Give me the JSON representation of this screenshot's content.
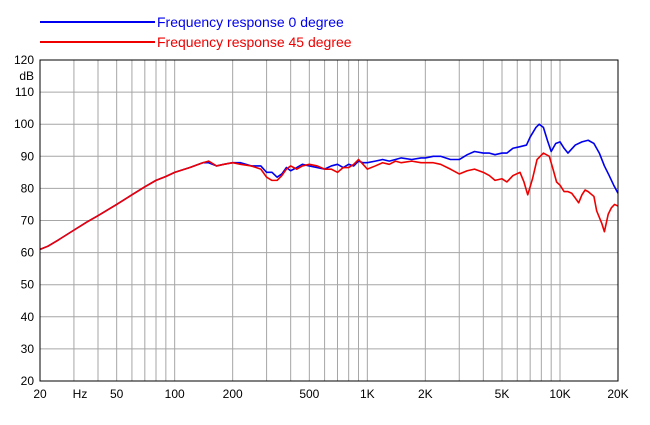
{
  "chart_data": {
    "type": "line",
    "title": "",
    "xlabel": "",
    "ylabel": "",
    "x_scale": "log",
    "xlim": [
      20,
      20000
    ],
    "ylim": [
      20,
      120
    ],
    "x_unit_label": "Hz",
    "y_unit_label": "dB",
    "grid": true,
    "legend_position": "top-left",
    "x_tick_labels": [
      {
        "value": 20,
        "label": "20"
      },
      {
        "value": 50,
        "label": "50"
      },
      {
        "value": 100,
        "label": "100"
      },
      {
        "value": 200,
        "label": "200"
      },
      {
        "value": 500,
        "label": "500"
      },
      {
        "value": 1000,
        "label": "1K"
      },
      {
        "value": 2000,
        "label": "2K"
      },
      {
        "value": 5000,
        "label": "5K"
      },
      {
        "value": 10000,
        "label": "10K"
      },
      {
        "value": 20000,
        "label": "20K"
      }
    ],
    "x_minor_grid": [
      30,
      40,
      60,
      70,
      80,
      90,
      300,
      400,
      600,
      700,
      800,
      900,
      3000,
      4000,
      6000,
      7000,
      8000,
      9000
    ],
    "y_ticks": [
      20,
      30,
      40,
      50,
      60,
      70,
      80,
      90,
      100,
      110,
      120
    ],
    "series": [
      {
        "name": "Frequency response 0 degree",
        "color": "#0000ee",
        "points": [
          [
            20,
            61
          ],
          [
            22,
            62
          ],
          [
            25,
            64
          ],
          [
            30,
            67
          ],
          [
            35,
            69.5
          ],
          [
            40,
            71.5
          ],
          [
            50,
            75
          ],
          [
            60,
            78
          ],
          [
            70,
            80.5
          ],
          [
            80,
            82.5
          ],
          [
            90,
            83.7
          ],
          [
            100,
            85
          ],
          [
            120,
            86.5
          ],
          [
            140,
            88
          ],
          [
            150,
            88
          ],
          [
            165,
            87
          ],
          [
            180,
            87.5
          ],
          [
            200,
            88
          ],
          [
            220,
            88
          ],
          [
            250,
            87
          ],
          [
            280,
            87
          ],
          [
            300,
            85
          ],
          [
            320,
            85
          ],
          [
            340,
            83.5
          ],
          [
            360,
            84.5
          ],
          [
            380,
            86.5
          ],
          [
            400,
            85.5
          ],
          [
            430,
            86.5
          ],
          [
            460,
            87.5
          ],
          [
            500,
            87
          ],
          [
            550,
            86.5
          ],
          [
            600,
            86
          ],
          [
            650,
            87
          ],
          [
            700,
            87.5
          ],
          [
            750,
            86.5
          ],
          [
            800,
            87.5
          ],
          [
            850,
            87
          ],
          [
            900,
            88.5
          ],
          [
            950,
            88
          ],
          [
            1000,
            88
          ],
          [
            1100,
            88.5
          ],
          [
            1200,
            89
          ],
          [
            1300,
            88.5
          ],
          [
            1400,
            89
          ],
          [
            1500,
            89.5
          ],
          [
            1700,
            89
          ],
          [
            1900,
            89.5
          ],
          [
            2000,
            89.5
          ],
          [
            2200,
            90
          ],
          [
            2400,
            90
          ],
          [
            2700,
            89
          ],
          [
            3000,
            89
          ],
          [
            3300,
            90.5
          ],
          [
            3600,
            91.5
          ],
          [
            4000,
            91
          ],
          [
            4300,
            91
          ],
          [
            4600,
            90.5
          ],
          [
            5000,
            91
          ],
          [
            5300,
            91
          ],
          [
            5700,
            92.5
          ],
          [
            6200,
            93
          ],
          [
            6700,
            93.5
          ],
          [
            7000,
            96
          ],
          [
            7500,
            99
          ],
          [
            7800,
            100
          ],
          [
            8200,
            99
          ],
          [
            8600,
            95
          ],
          [
            9000,
            91.5
          ],
          [
            9500,
            94
          ],
          [
            10000,
            94.5
          ],
          [
            10500,
            92.5
          ],
          [
            11000,
            91
          ],
          [
            12000,
            93.5
          ],
          [
            13000,
            94.5
          ],
          [
            14000,
            95
          ],
          [
            15000,
            94
          ],
          [
            16000,
            91
          ],
          [
            17000,
            87
          ],
          [
            18000,
            84
          ],
          [
            19000,
            81
          ],
          [
            20000,
            78.5
          ]
        ]
      },
      {
        "name": "Frequency response 45 degree",
        "color": "#ee0000",
        "points": [
          [
            20,
            61
          ],
          [
            22,
            62
          ],
          [
            25,
            64
          ],
          [
            30,
            67
          ],
          [
            35,
            69.5
          ],
          [
            40,
            71.5
          ],
          [
            50,
            75
          ],
          [
            60,
            78
          ],
          [
            70,
            80.5
          ],
          [
            80,
            82.5
          ],
          [
            90,
            83.7
          ],
          [
            100,
            85
          ],
          [
            120,
            86.5
          ],
          [
            140,
            88
          ],
          [
            150,
            88.5
          ],
          [
            165,
            87
          ],
          [
            180,
            87.5
          ],
          [
            200,
            88
          ],
          [
            220,
            87.5
          ],
          [
            250,
            87
          ],
          [
            280,
            86
          ],
          [
            300,
            83.5
          ],
          [
            320,
            82.5
          ],
          [
            340,
            82.5
          ],
          [
            360,
            84
          ],
          [
            380,
            86
          ],
          [
            400,
            87
          ],
          [
            430,
            86
          ],
          [
            460,
            87
          ],
          [
            500,
            87.5
          ],
          [
            550,
            87
          ],
          [
            600,
            86
          ],
          [
            650,
            86
          ],
          [
            700,
            85
          ],
          [
            750,
            86.5
          ],
          [
            800,
            86.5
          ],
          [
            850,
            87.5
          ],
          [
            900,
            89
          ],
          [
            950,
            87.5
          ],
          [
            1000,
            86
          ],
          [
            1100,
            87
          ],
          [
            1200,
            88
          ],
          [
            1300,
            87.5
          ],
          [
            1400,
            88.5
          ],
          [
            1500,
            88
          ],
          [
            1700,
            88.5
          ],
          [
            1900,
            88
          ],
          [
            2000,
            88
          ],
          [
            2200,
            88
          ],
          [
            2400,
            87.5
          ],
          [
            2700,
            86
          ],
          [
            3000,
            84.5
          ],
          [
            3300,
            85.5
          ],
          [
            3600,
            86
          ],
          [
            4000,
            85
          ],
          [
            4300,
            84
          ],
          [
            4600,
            82.5
          ],
          [
            5000,
            83
          ],
          [
            5300,
            82
          ],
          [
            5700,
            84
          ],
          [
            6200,
            85
          ],
          [
            6500,
            82
          ],
          [
            6800,
            78
          ],
          [
            7200,
            83
          ],
          [
            7600,
            89
          ],
          [
            8200,
            91
          ],
          [
            8800,
            90
          ],
          [
            9200,
            86
          ],
          [
            9600,
            82
          ],
          [
            10000,
            81
          ],
          [
            10500,
            79
          ],
          [
            11000,
            79
          ],
          [
            11500,
            78.5
          ],
          [
            12000,
            77
          ],
          [
            12500,
            75.5
          ],
          [
            13000,
            78
          ],
          [
            13500,
            79.5
          ],
          [
            14000,
            79
          ],
          [
            15000,
            77.5
          ],
          [
            15500,
            73
          ],
          [
            16500,
            69
          ],
          [
            17000,
            66.5
          ],
          [
            17800,
            72
          ],
          [
            18500,
            74
          ],
          [
            19200,
            75
          ],
          [
            20000,
            74.5
          ]
        ]
      }
    ]
  }
}
